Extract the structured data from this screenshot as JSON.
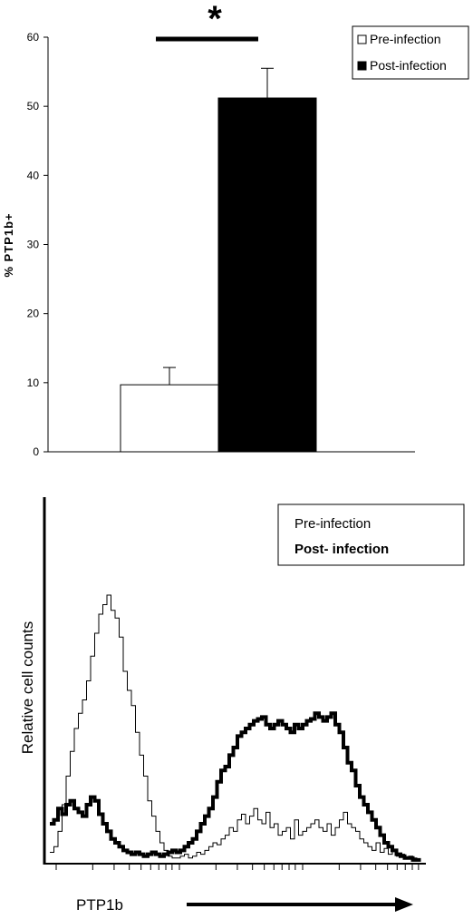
{
  "chart_data": [
    {
      "type": "bar",
      "categories": [
        "Pre-infection",
        "Post-infection"
      ],
      "values": [
        9.7,
        51.2
      ],
      "errors": [
        2.5,
        4.3
      ],
      "ylabel": "% PTP1b+",
      "ylim": [
        0,
        60
      ],
      "yticks": [
        0,
        10,
        20,
        30,
        40,
        50,
        60
      ],
      "significance_marker": "*",
      "colors": {
        "Pre-infection": "#ffffff",
        "Post-infection": "#000000"
      },
      "legend": {
        "placement": "top-right",
        "entries": [
          {
            "label": "Pre-infection",
            "color": "#ffffff"
          },
          {
            "label": "Post-infection",
            "color": "#000000"
          }
        ]
      },
      "grid": false
    },
    {
      "type": "line",
      "xlabel": "PTP1b",
      "ylabel": "Relative cell counts",
      "xscale": "log",
      "axis_ticks_labeled": false,
      "legend": {
        "placement": "top-right",
        "entries": [
          {
            "label": "Pre-infection",
            "weight": "normal"
          },
          {
            "label": "Post- infection",
            "weight": "bold"
          }
        ]
      },
      "series": [
        {
          "name": "Pre-infection",
          "stroke": "thin",
          "x": [
            0,
            5,
            10,
            15,
            20,
            25,
            30,
            35,
            40,
            45,
            50,
            55,
            60,
            65,
            70,
            75,
            80,
            85,
            90,
            95,
            100,
            105,
            110,
            115,
            120,
            125,
            130,
            135,
            140,
            145,
            150,
            155,
            160,
            165,
            170,
            175,
            180,
            185,
            190,
            195,
            200,
            205,
            210,
            215,
            220,
            225,
            230,
            235,
            240,
            245,
            250,
            255,
            260,
            265,
            270,
            275,
            280,
            285,
            290,
            295,
            300,
            305,
            310,
            315,
            320,
            325,
            330,
            335,
            340,
            345,
            350,
            355,
            360,
            365,
            370,
            375,
            380,
            385,
            390,
            395,
            400,
            405,
            410,
            415,
            420,
            425,
            430,
            435,
            440,
            445,
            450
          ],
          "y": [
            5,
            8,
            16,
            30,
            45,
            58,
            70,
            78,
            85,
            95,
            108,
            120,
            130,
            135,
            140,
            132,
            128,
            118,
            100,
            90,
            82,
            68,
            56,
            45,
            32,
            24,
            16,
            10,
            6,
            3,
            2,
            2,
            3,
            4,
            2,
            3,
            5,
            4,
            6,
            8,
            10,
            9,
            12,
            14,
            18,
            16,
            22,
            25,
            20,
            24,
            28,
            22,
            20,
            26,
            18,
            20,
            14,
            16,
            18,
            12,
            22,
            14,
            16,
            18,
            20,
            22,
            18,
            16,
            20,
            14,
            18,
            22,
            26,
            20,
            18,
            16,
            12,
            10,
            8,
            6,
            10,
            5,
            7,
            4,
            6,
            3,
            4,
            2,
            3,
            2,
            1
          ]
        },
        {
          "name": "Post- infection",
          "stroke": "bold",
          "x": [
            0,
            5,
            10,
            15,
            20,
            25,
            30,
            35,
            40,
            45,
            50,
            55,
            60,
            65,
            70,
            75,
            80,
            85,
            90,
            95,
            100,
            105,
            110,
            115,
            120,
            125,
            130,
            135,
            140,
            145,
            150,
            155,
            160,
            165,
            170,
            175,
            180,
            185,
            190,
            195,
            200,
            205,
            210,
            215,
            220,
            225,
            230,
            235,
            240,
            245,
            250,
            255,
            260,
            265,
            270,
            275,
            280,
            285,
            290,
            295,
            300,
            305,
            310,
            315,
            320,
            325,
            330,
            335,
            340,
            345,
            350,
            355,
            360,
            365,
            370,
            375,
            380,
            385,
            390,
            395,
            400,
            405,
            410,
            415,
            420,
            425,
            430,
            435,
            440,
            445,
            450
          ],
          "y": [
            20,
            22,
            28,
            25,
            30,
            32,
            28,
            26,
            24,
            30,
            34,
            32,
            25,
            20,
            16,
            12,
            10,
            8,
            6,
            5,
            4,
            5,
            4,
            3,
            4,
            5,
            4,
            3,
            4,
            5,
            6,
            5,
            6,
            8,
            10,
            12,
            16,
            20,
            24,
            28,
            34,
            42,
            48,
            50,
            56,
            60,
            66,
            68,
            70,
            72,
            74,
            75,
            76,
            72,
            70,
            72,
            74,
            72,
            70,
            68,
            72,
            70,
            72,
            74,
            75,
            78,
            76,
            74,
            76,
            78,
            72,
            68,
            60,
            52,
            48,
            40,
            34,
            30,
            26,
            22,
            18,
            14,
            10,
            8,
            6,
            4,
            3,
            2,
            2,
            1,
            1
          ]
        }
      ],
      "grid": false
    }
  ]
}
